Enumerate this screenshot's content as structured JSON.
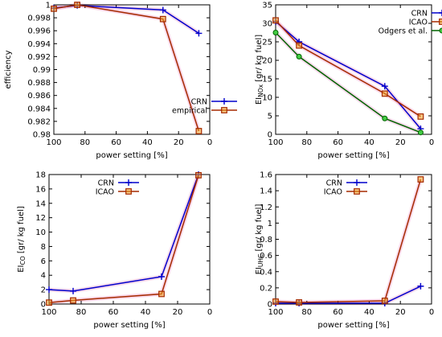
{
  "chart_data": [
    {
      "type": "line",
      "xlabel": "power setting [%]",
      "ylabel": "efficiency",
      "xlim": [
        100,
        0
      ],
      "ylim": [
        0.98,
        1.0
      ],
      "xticks": [
        "100",
        "80",
        "60",
        "40",
        "20",
        "0"
      ],
      "yticks": [
        "0.98",
        "0.982",
        "0.984",
        "0.986",
        "0.988",
        "0.99",
        "0.992",
        "0.994",
        "0.996",
        "0.998",
        "1"
      ],
      "legend_position": "bottom-left",
      "series": [
        {
          "name": "CRN",
          "color": "#0000cc",
          "marker": "plus",
          "x": [
            100,
            85,
            30,
            7
          ],
          "y": [
            0.9995,
            0.9999,
            0.9992,
            0.9956
          ]
        },
        {
          "name": "empirical",
          "color": "#a52a00",
          "marker": "square",
          "x": [
            100,
            85,
            30,
            7
          ],
          "y": [
            0.9994,
            1.0,
            0.9978,
            0.9805
          ]
        }
      ]
    },
    {
      "type": "line",
      "xlabel": "power setting [%]",
      "ylabel": "EI",
      "ylabel_sub": "NOx",
      "ylabel_unit": " [gr/ kg fuel]",
      "xlim": [
        100,
        0
      ],
      "ylim": [
        0,
        35
      ],
      "xticks": [
        "100",
        "80",
        "60",
        "40",
        "20",
        "0"
      ],
      "yticks": [
        "0",
        "5",
        "10",
        "15",
        "20",
        "25",
        "30",
        "35"
      ],
      "legend_position": "top-right",
      "series": [
        {
          "name": "CRN",
          "color": "#0000cc",
          "marker": "plus",
          "x": [
            100,
            85,
            30,
            7
          ],
          "y": [
            30.5,
            25.0,
            13.0,
            1.5
          ]
        },
        {
          "name": "ICAO",
          "color": "#a52a00",
          "marker": "square",
          "x": [
            100,
            85,
            30,
            7
          ],
          "y": [
            30.8,
            24.0,
            11.0,
            4.8
          ]
        },
        {
          "name": "Odgers et al.",
          "color": "#006400",
          "marker": "circle",
          "x": [
            100,
            85,
            30,
            7
          ],
          "y": [
            27.5,
            21.0,
            4.3,
            0.5
          ]
        }
      ]
    },
    {
      "type": "line",
      "xlabel": "power setting [%]",
      "ylabel": "EI",
      "ylabel_sub": "CO",
      "ylabel_unit": " [gr/ kg fuel]",
      "xlim": [
        100,
        0
      ],
      "ylim": [
        0,
        18
      ],
      "xticks": [
        "100",
        "80",
        "60",
        "40",
        "20",
        "0"
      ],
      "yticks": [
        "0",
        "2",
        "4",
        "6",
        "8",
        "10",
        "12",
        "14",
        "16",
        "18"
      ],
      "legend_position": "top-left",
      "series": [
        {
          "name": "CRN",
          "color": "#0000cc",
          "marker": "plus",
          "x": [
            100,
            85,
            30,
            7
          ],
          "y": [
            2.0,
            1.8,
            3.8,
            18.0
          ]
        },
        {
          "name": "ICAO",
          "color": "#a52a00",
          "marker": "square",
          "x": [
            100,
            85,
            30,
            7
          ],
          "y": [
            0.2,
            0.5,
            1.4,
            17.9
          ]
        }
      ]
    },
    {
      "type": "line",
      "xlabel": "power setting [%]",
      "ylabel": "EI",
      "ylabel_sub": "UHC",
      "ylabel_unit": " [gr/ kg fuel]",
      "xlim": [
        100,
        0
      ],
      "ylim": [
        0,
        1.6
      ],
      "xticks": [
        "100",
        "80",
        "60",
        "40",
        "20",
        "0"
      ],
      "yticks": [
        "0",
        "0.2",
        "0.4",
        "0.6",
        "0.8",
        "1",
        "1.2",
        "1.4",
        "1.6"
      ],
      "legend_position": "top-left",
      "series": [
        {
          "name": "CRN",
          "color": "#0000cc",
          "marker": "plus",
          "x": [
            100,
            85,
            30,
            7
          ],
          "y": [
            0.01,
            0.01,
            0.01,
            0.22
          ]
        },
        {
          "name": "ICAO",
          "color": "#a52a00",
          "marker": "square",
          "x": [
            100,
            85,
            30,
            7
          ],
          "y": [
            0.03,
            0.02,
            0.04,
            1.54
          ]
        }
      ]
    }
  ]
}
